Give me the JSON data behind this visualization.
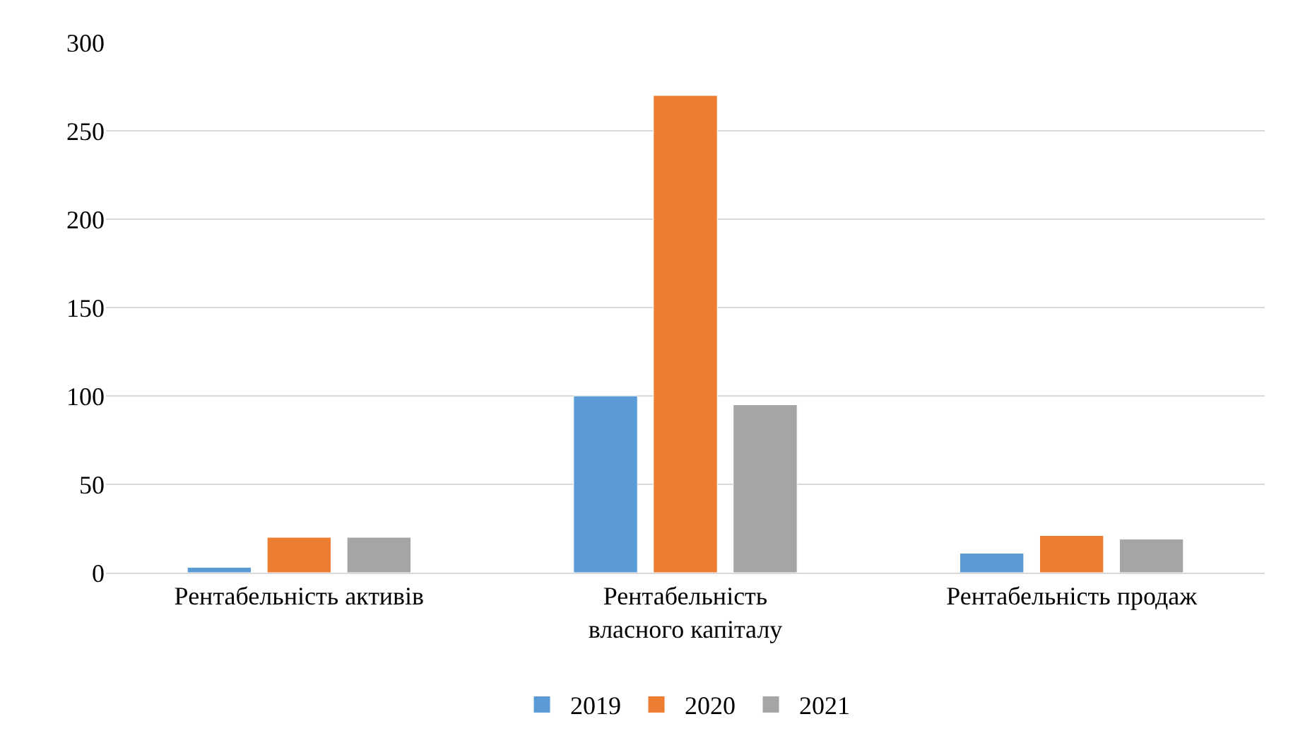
{
  "chart_data": {
    "type": "bar",
    "categories": [
      "Рентабельність активів",
      "Рентабельність\nвласного капіталу",
      "Рентабельність продаж"
    ],
    "series": [
      {
        "name": "2019",
        "color": "#5b9bd5",
        "values": [
          3,
          100,
          11
        ]
      },
      {
        "name": "2020",
        "color": "#ed7d31",
        "values": [
          20,
          270,
          21
        ]
      },
      {
        "name": "2021",
        "color": "#a5a5a5",
        "values": [
          20,
          95,
          19
        ]
      }
    ],
    "ylim": [
      0,
      300
    ],
    "yticks": [
      0,
      50,
      100,
      150,
      200,
      250,
      300
    ],
    "grid": "y",
    "legend": "bottom"
  }
}
